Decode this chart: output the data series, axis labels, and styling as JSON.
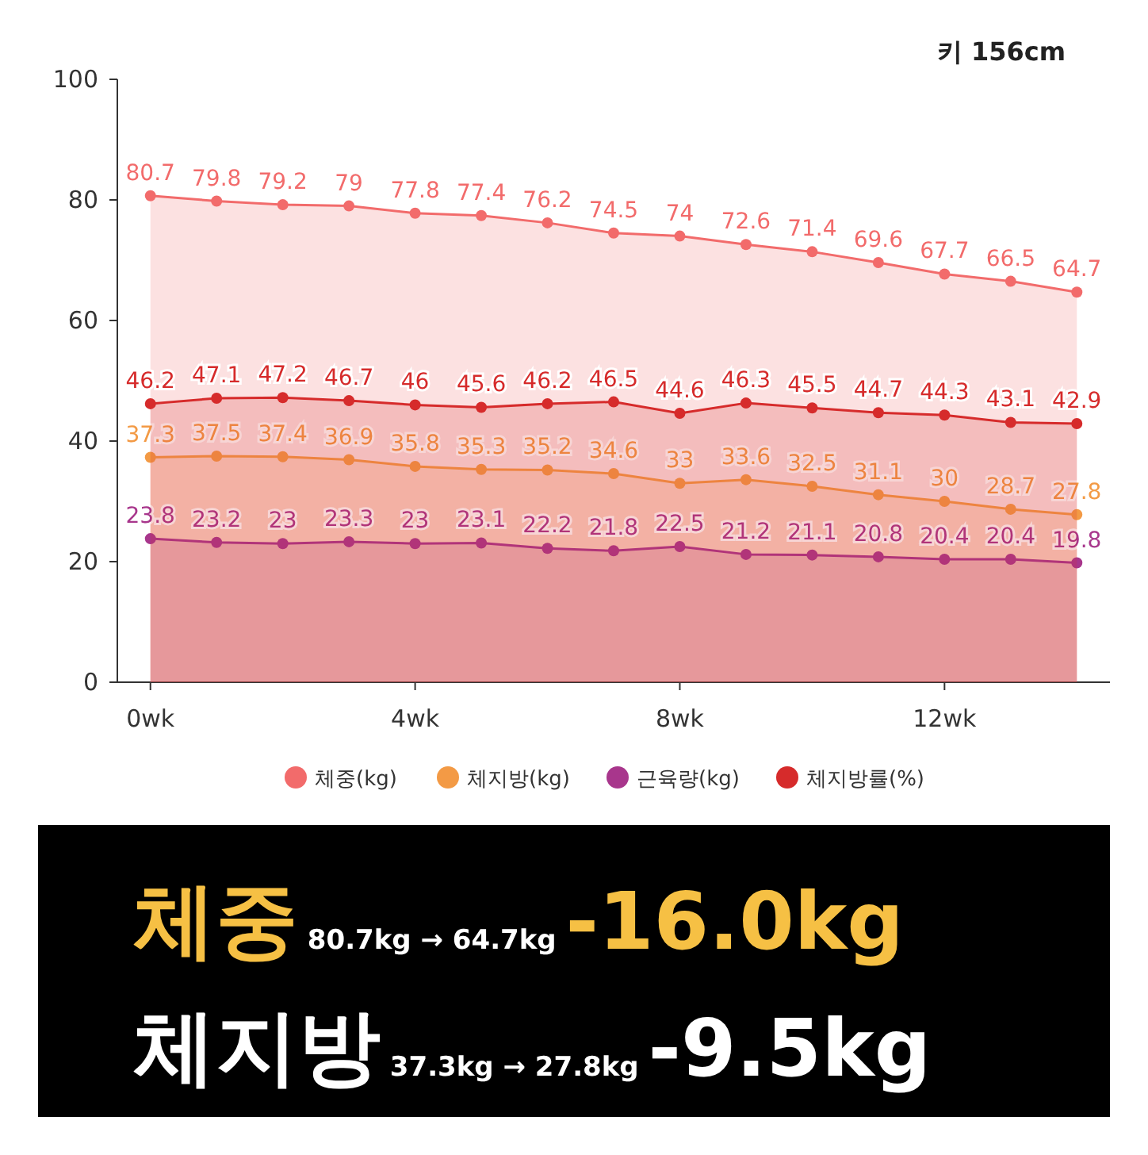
{
  "chart_data": {
    "type": "area",
    "x": [
      0,
      1,
      2,
      3,
      4,
      5,
      6,
      7,
      8,
      9,
      10,
      11,
      12,
      13,
      14
    ],
    "xlim": [
      -0.5,
      14.5
    ],
    "xticks": [
      {
        "value": 0,
        "label": "0wk"
      },
      {
        "value": 4,
        "label": "4wk"
      },
      {
        "value": 8,
        "label": "8wk"
      },
      {
        "value": 12,
        "label": "12wk"
      }
    ],
    "ylim": [
      0,
      100
    ],
    "yticks": [
      0,
      20,
      40,
      60,
      80,
      100
    ],
    "grid": false,
    "legend": "bottom",
    "marker": "circle",
    "data_labels": true,
    "series": [
      {
        "name": "체중(kg)",
        "color": "#f26b6b",
        "values": [
          80.7,
          79.8,
          79.2,
          79,
          77.8,
          77.4,
          76.2,
          74.5,
          74,
          72.6,
          71.4,
          69.6,
          67.7,
          66.5,
          64.7
        ]
      },
      {
        "name": "체지방(kg)",
        "color": "#f39a45",
        "values": [
          37.3,
          37.5,
          37.4,
          36.9,
          35.8,
          35.3,
          35.2,
          34.6,
          33,
          33.6,
          32.5,
          31.1,
          30,
          28.7,
          27.8
        ]
      },
      {
        "name": "근육량(kg)",
        "color": "#a8368c",
        "values": [
          23.8,
          23.2,
          23,
          23.3,
          23,
          23.1,
          22.2,
          21.8,
          22.5,
          21.2,
          21.1,
          20.8,
          20.4,
          20.4,
          19.8
        ]
      },
      {
        "name": "체지방률(%)",
        "color": "#d62b2b",
        "values": [
          46.2,
          47.1,
          47.2,
          46.7,
          46,
          45.6,
          46.2,
          46.5,
          44.6,
          46.3,
          45.5,
          44.7,
          44.3,
          43.1,
          42.9
        ]
      }
    ],
    "annotations": [
      "키 156cm",
      "체중",
      "80.7kg → 64.7kg",
      "-16.0kg",
      "체지방",
      "37.3kg → 27.8kg",
      "-9.5kg"
    ]
  }
}
